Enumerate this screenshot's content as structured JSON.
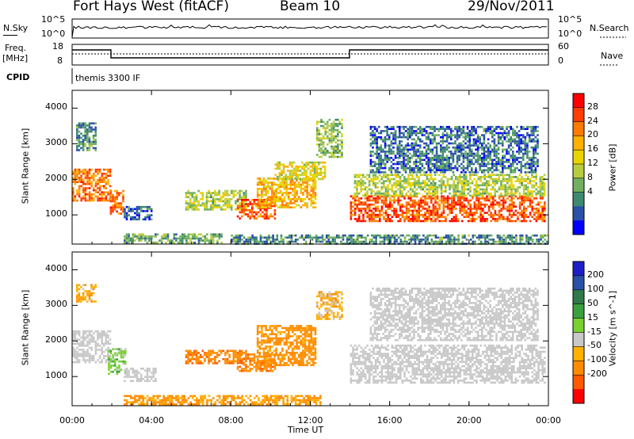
{
  "header": {
    "station": "Fort Hays West (fitACF)",
    "beam": "Beam 10",
    "date": "29/Nov/2011"
  },
  "top_panels": {
    "nsky_label": "N.Sky",
    "nsky_ticks": [
      "10^5",
      "10^0"
    ],
    "nsearch_label": "N.Search",
    "freq_label_line1": "Freq.",
    "freq_label_line2": "[MHz]",
    "freq_ticks": [
      "18",
      "8"
    ],
    "nave_label": "Nave",
    "nave_ticks": [
      "60",
      "0"
    ],
    "cpid_label": "CPID",
    "cpid_value": "themis 3300 IF"
  },
  "chart_data": [
    {
      "type": "heatmap",
      "name": "power",
      "ylabel": "Slant Range [km]",
      "xlabel": "Time UT",
      "xlim_hours": [
        0,
        24
      ],
      "ylim": [
        180,
        4500
      ],
      "yticks": [
        1000,
        2000,
        3000,
        4000
      ],
      "xticks": [
        "00:00",
        "04:00",
        "08:00",
        "12:00",
        "16:00",
        "20:00",
        "00:00"
      ],
      "colorbar": {
        "label": "Power [dB]",
        "ticks": [
          "28",
          "24",
          "20",
          "16",
          "12",
          "8",
          "4"
        ],
        "colors": [
          "#ff0000",
          "#ff3c00",
          "#ff7a00",
          "#ffb000",
          "#e8d400",
          "#b8cc40",
          "#70b060",
          "#3e8a70",
          "#2a50a8",
          "#0000ff"
        ]
      },
      "echo_regions": [
        {
          "t0": 0.0,
          "t1": 1.9,
          "r0": 1400,
          "r1": 2300,
          "value": 24
        },
        {
          "t0": 0.2,
          "t1": 1.2,
          "r0": 2800,
          "r1": 3600,
          "value": 8
        },
        {
          "t0": 1.9,
          "t1": 2.6,
          "r0": 1050,
          "r1": 1700,
          "value": 24
        },
        {
          "t0": 2.6,
          "t1": 4.0,
          "r0": 850,
          "r1": 1250,
          "value": 6
        },
        {
          "t0": 2.6,
          "t1": 7.5,
          "r0": 230,
          "r1": 480,
          "value": 10
        },
        {
          "t0": 5.7,
          "t1": 8.8,
          "r0": 1150,
          "r1": 1700,
          "value": 14
        },
        {
          "t0": 8.3,
          "t1": 10.2,
          "r0": 900,
          "r1": 1450,
          "value": 26
        },
        {
          "t0": 9.3,
          "t1": 12.3,
          "r0": 1200,
          "r1": 2050,
          "value": 20
        },
        {
          "t0": 10.2,
          "t1": 12.7,
          "r0": 2000,
          "r1": 2500,
          "value": 16
        },
        {
          "t0": 12.3,
          "t1": 13.6,
          "r0": 2600,
          "r1": 3700,
          "value": 12
        },
        {
          "t0": 14.0,
          "t1": 23.8,
          "r0": 850,
          "r1": 1550,
          "value": 26
        },
        {
          "t0": 14.2,
          "t1": 23.8,
          "r0": 1550,
          "r1": 2150,
          "value": 14
        },
        {
          "t0": 15.0,
          "t1": 23.5,
          "r0": 2200,
          "r1": 3500,
          "value": 6
        },
        {
          "t0": 8.0,
          "t1": 23.9,
          "r0": 200,
          "r1": 450,
          "value": 8
        }
      ]
    },
    {
      "type": "heatmap",
      "name": "velocity",
      "ylabel": "Slant Range [km]",
      "xlabel": "Time UT",
      "xlim_hours": [
        0,
        24
      ],
      "ylim": [
        180,
        4500
      ],
      "yticks": [
        1000,
        2000,
        3000,
        4000
      ],
      "xticks": [
        "00:00",
        "04:00",
        "08:00",
        "12:00",
        "16:00",
        "20:00",
        "00:00"
      ],
      "colorbar": {
        "label": "Velocity [m s^-1]",
        "ticks": [
          "200",
          "100",
          "50",
          "15",
          "-15",
          "-50",
          "-100",
          "-200"
        ],
        "colors": [
          "#1e1ec8",
          "#2a50a8",
          "#2f7a48",
          "#3aa040",
          "#7ad030",
          "#c8c8c8",
          "#ffb000",
          "#ff8c00",
          "#ff5a00",
          "#ff0000"
        ]
      },
      "echo_regions": [
        {
          "t0": 0.0,
          "t1": 1.9,
          "r0": 1400,
          "r1": 2300,
          "value": 0
        },
        {
          "t0": 0.2,
          "t1": 1.2,
          "r0": 3100,
          "r1": 3600,
          "value": -40
        },
        {
          "t0": 1.8,
          "t1": 2.7,
          "r0": 1050,
          "r1": 1800,
          "value": 30
        },
        {
          "t0": 2.6,
          "t1": 4.2,
          "r0": 850,
          "r1": 1250,
          "value": 0
        },
        {
          "t0": 2.6,
          "t1": 12.5,
          "r0": 230,
          "r1": 480,
          "value": -60
        },
        {
          "t0": 5.7,
          "t1": 8.8,
          "r0": 1350,
          "r1": 1750,
          "value": -90
        },
        {
          "t0": 8.3,
          "t1": 10.2,
          "r0": 1150,
          "r1": 1650,
          "value": -80
        },
        {
          "t0": 9.3,
          "t1": 12.3,
          "r0": 1300,
          "r1": 2450,
          "value": -70
        },
        {
          "t0": 12.3,
          "t1": 13.6,
          "r0": 2600,
          "r1": 3400,
          "value": -30
        },
        {
          "t0": 14.0,
          "t1": 23.8,
          "r0": 850,
          "r1": 1900,
          "value": 0
        },
        {
          "t0": 15.0,
          "t1": 23.5,
          "r0": 2000,
          "r1": 3500,
          "value": 0
        }
      ]
    }
  ]
}
